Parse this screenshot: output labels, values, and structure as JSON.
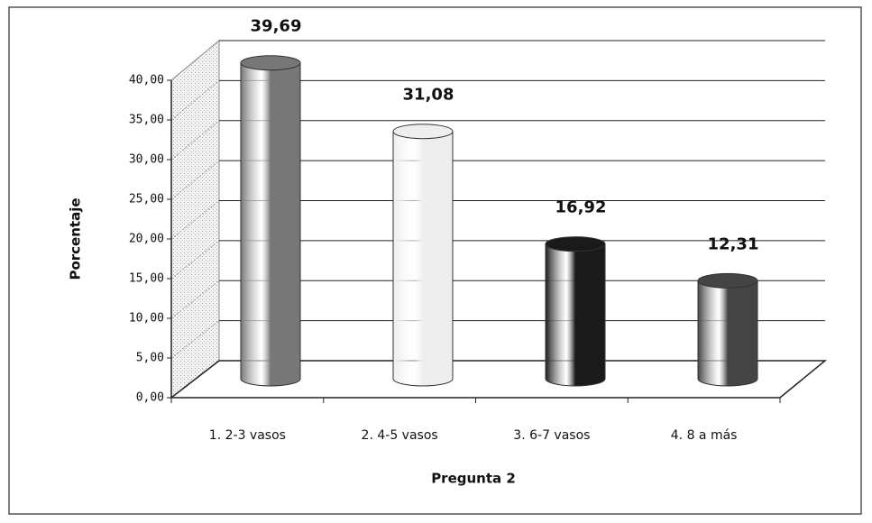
{
  "chart_data": {
    "type": "bar3d",
    "categories": [
      "1. 2-3 vasos",
      "2. 4-5 vasos",
      "3. 6-7 vasos",
      "4. 8 a más"
    ],
    "values": [
      39.69,
      31.08,
      16.92,
      12.31
    ],
    "value_labels": [
      "39,69",
      "31,08",
      "16,92",
      "12,31"
    ],
    "colors": [
      "#777777",
      "#eeeeee",
      "#1a1a1a",
      "#444444"
    ],
    "xlabel": "Pregunta 2",
    "ylabel": "Porcentaje",
    "ylim": [
      0,
      40
    ],
    "yticks": [
      {
        "value": 0,
        "label": "0,00"
      },
      {
        "value": 5,
        "label": "5,00"
      },
      {
        "value": 10,
        "label": "10,00"
      },
      {
        "value": 15,
        "label": "15,00"
      },
      {
        "value": 20,
        "label": "20,00"
      },
      {
        "value": 25,
        "label": "25,00"
      },
      {
        "value": 30,
        "label": "30,00"
      },
      {
        "value": 35,
        "label": "35,00"
      },
      {
        "value": 40,
        "label": "40,00"
      }
    ],
    "grid": true
  }
}
